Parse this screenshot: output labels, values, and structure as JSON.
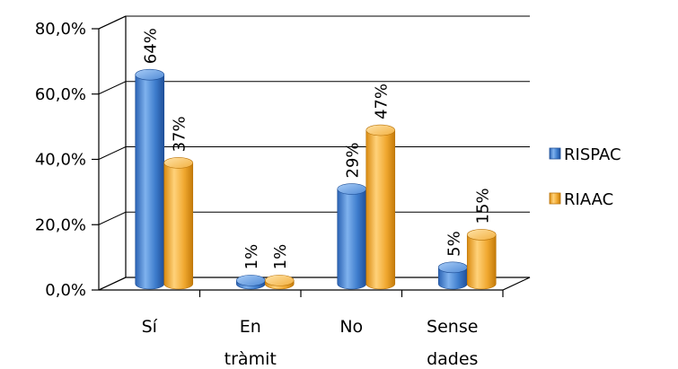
{
  "chart_data": {
    "type": "bar",
    "categories": [
      [
        "Sí"
      ],
      [
        "En",
        "tràmit"
      ],
      [
        "No"
      ],
      [
        "Sense",
        "dades"
      ]
    ],
    "series": [
      {
        "name": "RISPAC",
        "values": [
          64,
          1,
          29,
          5
        ],
        "labels": [
          "64%",
          "1%",
          "29%",
          "5%"
        ],
        "color": "#3f7fcf"
      },
      {
        "name": "RIAAC",
        "values": [
          37,
          1,
          47,
          15
        ],
        "labels": [
          "37%",
          "1%",
          "47%",
          "15%"
        ],
        "color": "#f0a830"
      }
    ],
    "y_ticks": [
      {
        "value": 0,
        "label": "0,0%"
      },
      {
        "value": 20,
        "label": "20,0%"
      },
      {
        "value": 40,
        "label": "40,0%"
      },
      {
        "value": 60,
        "label": "60,0%"
      },
      {
        "value": 80,
        "label": "80,0%"
      }
    ],
    "ylim": [
      0,
      80
    ],
    "grid": true,
    "legend_position": "right",
    "style": "3d-cylinder"
  }
}
